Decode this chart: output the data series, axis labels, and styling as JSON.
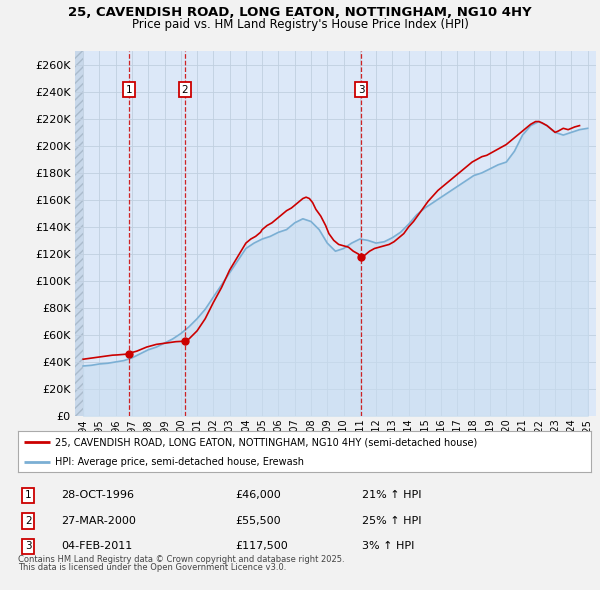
{
  "title": "25, CAVENDISH ROAD, LONG EATON, NOTTINGHAM, NG10 4HY",
  "subtitle": "Price paid vs. HM Land Registry's House Price Index (HPI)",
  "legend_line1": "25, CAVENDISH ROAD, LONG EATON, NOTTINGHAM, NG10 4HY (semi-detached house)",
  "legend_line2": "HPI: Average price, semi-detached house, Erewash",
  "footer1": "Contains HM Land Registry data © Crown copyright and database right 2025.",
  "footer2": "This data is licensed under the Open Government Licence v3.0.",
  "sale_color": "#cc0000",
  "hpi_color": "#7bafd4",
  "hpi_fill_color": "#c8ddf0",
  "background_color": "#dce8f8",
  "hatch_color": "#c0d0e0",
  "grid_color": "#c0cfe0",
  "ylim": [
    0,
    270000
  ],
  "xlim": [
    1993.5,
    2025.5
  ],
  "yticks": [
    0,
    20000,
    40000,
    60000,
    80000,
    100000,
    120000,
    140000,
    160000,
    180000,
    200000,
    220000,
    240000,
    260000
  ],
  "sales": [
    {
      "label": "1",
      "date": "28-OCT-1996",
      "price": 46000,
      "pct": "21%",
      "direction": "↑",
      "x": 1996.83
    },
    {
      "label": "2",
      "date": "27-MAR-2000",
      "price": 55500,
      "pct": "25%",
      "direction": "↑",
      "x": 2000.24
    },
    {
      "label": "3",
      "date": "04-FEB-2011",
      "price": 117500,
      "pct": "3%",
      "direction": "↑",
      "x": 2011.09
    }
  ],
  "hpi_x": [
    1994.0,
    1994.5,
    1995.0,
    1995.5,
    1996.0,
    1996.5,
    1997.0,
    1997.5,
    1998.0,
    1998.5,
    1999.0,
    1999.5,
    2000.0,
    2000.5,
    2001.0,
    2001.5,
    2002.0,
    2002.5,
    2003.0,
    2003.5,
    2004.0,
    2004.5,
    2005.0,
    2005.5,
    2006.0,
    2006.5,
    2007.0,
    2007.5,
    2008.0,
    2008.5,
    2009.0,
    2009.5,
    2010.0,
    2010.5,
    2011.0,
    2011.5,
    2012.0,
    2012.5,
    2013.0,
    2013.5,
    2014.0,
    2014.5,
    2015.0,
    2015.5,
    2016.0,
    2016.5,
    2017.0,
    2017.5,
    2018.0,
    2018.5,
    2019.0,
    2019.5,
    2020.0,
    2020.5,
    2021.0,
    2021.5,
    2022.0,
    2022.5,
    2023.0,
    2023.5,
    2024.0,
    2024.5,
    2025.0
  ],
  "hpi_y": [
    37000,
    37500,
    38500,
    39000,
    40000,
    41000,
    43000,
    46000,
    49000,
    51000,
    54000,
    57000,
    61000,
    66000,
    72000,
    79000,
    88000,
    97000,
    106000,
    115000,
    124000,
    128000,
    131000,
    133000,
    136000,
    138000,
    143000,
    146000,
    144000,
    138000,
    128000,
    122000,
    124000,
    128000,
    131000,
    130000,
    128000,
    129000,
    132000,
    136000,
    142000,
    149000,
    154000,
    158000,
    162000,
    166000,
    170000,
    174000,
    178000,
    180000,
    183000,
    186000,
    188000,
    196000,
    208000,
    215000,
    218000,
    215000,
    210000,
    208000,
    210000,
    212000,
    213000
  ],
  "sale_x": [
    1994.0,
    1994.3,
    1994.6,
    1994.9,
    1995.2,
    1995.5,
    1995.8,
    1996.1,
    1996.4,
    1996.7,
    1996.83,
    1997.0,
    1997.3,
    1997.6,
    1997.9,
    1998.2,
    1998.5,
    1998.8,
    1999.1,
    1999.4,
    1999.7,
    2000.0,
    2000.24,
    2000.5,
    2001.0,
    2001.5,
    2002.0,
    2002.5,
    2003.0,
    2003.5,
    2004.0,
    2004.3,
    2004.6,
    2004.9,
    2005.0,
    2005.3,
    2005.6,
    2005.9,
    2006.2,
    2006.5,
    2006.8,
    2007.0,
    2007.2,
    2007.4,
    2007.5,
    2007.7,
    2007.9,
    2008.1,
    2008.3,
    2008.6,
    2008.9,
    2009.1,
    2009.4,
    2009.7,
    2010.0,
    2010.3,
    2010.6,
    2010.9,
    2011.09,
    2011.3,
    2011.6,
    2011.9,
    2012.2,
    2012.5,
    2012.8,
    2013.1,
    2013.4,
    2013.7,
    2014.0,
    2014.3,
    2014.6,
    2014.9,
    2015.2,
    2015.5,
    2015.8,
    2016.1,
    2016.4,
    2016.7,
    2017.0,
    2017.3,
    2017.6,
    2017.9,
    2018.2,
    2018.5,
    2018.8,
    2019.1,
    2019.4,
    2019.7,
    2020.0,
    2020.3,
    2020.6,
    2020.9,
    2021.2,
    2021.5,
    2021.8,
    2022.0,
    2022.2,
    2022.5,
    2022.8,
    2023.0,
    2023.2,
    2023.5,
    2023.8,
    2024.0,
    2024.2,
    2024.5
  ],
  "sale_y": [
    42000,
    42500,
    43000,
    43500,
    44000,
    44500,
    45000,
    45200,
    45500,
    45800,
    46000,
    47000,
    48000,
    49500,
    51000,
    52000,
    53000,
    53500,
    54000,
    54500,
    55000,
    55200,
    55500,
    57000,
    63000,
    72000,
    84000,
    95000,
    108000,
    118000,
    128000,
    131000,
    133000,
    136000,
    138000,
    141000,
    143000,
    146000,
    149000,
    152000,
    154000,
    156000,
    158000,
    160000,
    161000,
    162000,
    161000,
    158000,
    153000,
    148000,
    141000,
    135000,
    130000,
    127000,
    126000,
    125000,
    122000,
    120000,
    117500,
    119000,
    122000,
    124000,
    125000,
    126000,
    127000,
    129000,
    132000,
    135000,
    140000,
    144000,
    149000,
    154000,
    159000,
    163000,
    167000,
    170000,
    173000,
    176000,
    179000,
    182000,
    185000,
    188000,
    190000,
    192000,
    193000,
    195000,
    197000,
    199000,
    201000,
    204000,
    207000,
    210000,
    213000,
    216000,
    218000,
    218000,
    217000,
    215000,
    212000,
    210000,
    211000,
    213000,
    212000,
    213000,
    214000,
    215000
  ]
}
